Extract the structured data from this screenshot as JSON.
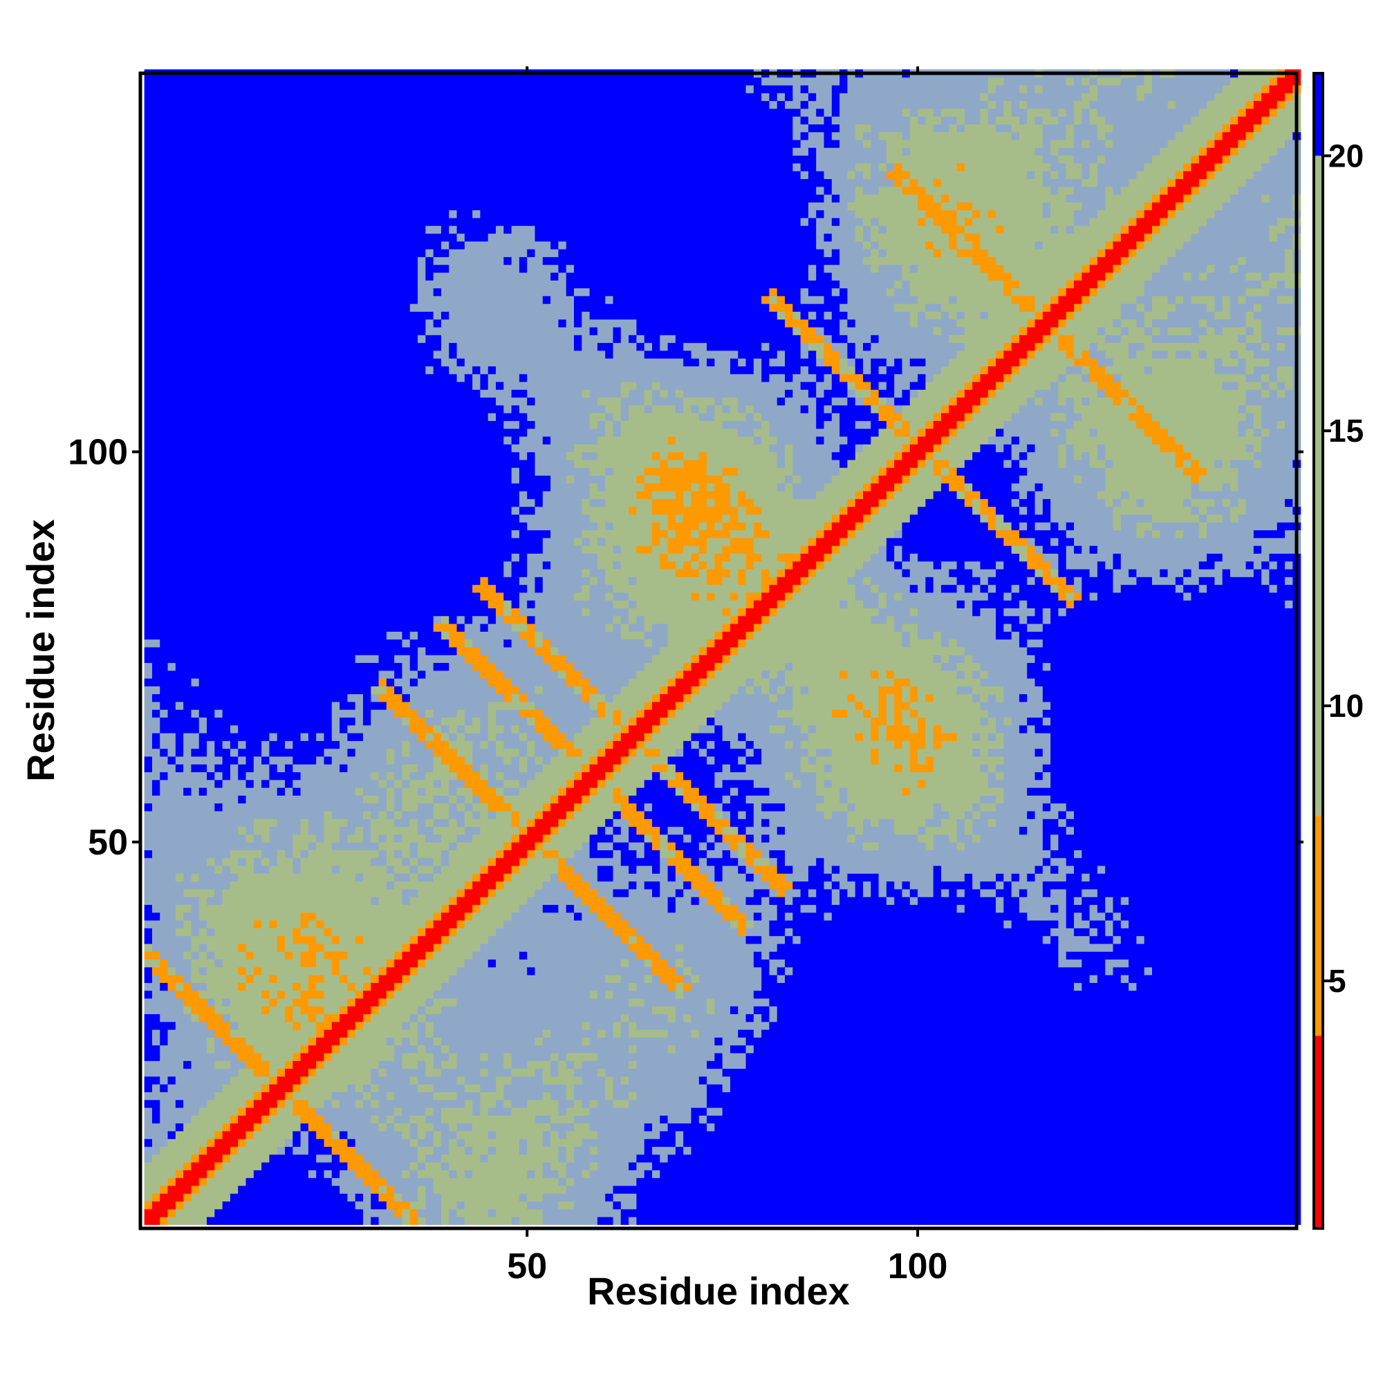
{
  "chart_data": {
    "type": "heatmap",
    "title": "",
    "xlabel": "Residue index",
    "ylabel": "Residue index",
    "x_range": [
      1,
      148
    ],
    "y_range": [
      1,
      148
    ],
    "x_ticks": [
      50,
      100
    ],
    "y_ticks": [
      50,
      100
    ],
    "x_tick_labels": [
      "50",
      "100"
    ],
    "y_tick_labels": [
      "50",
      "100"
    ],
    "colorbar": {
      "range": [
        0.5,
        21.5
      ],
      "ticks": [
        5,
        10,
        15,
        20
      ],
      "tick_labels": [
        "5",
        "10",
        "15",
        "20"
      ],
      "colors": [
        {
          "from": 0.5,
          "to": 4.0,
          "color": "#ff0000"
        },
        {
          "from": 4.0,
          "to": 8.0,
          "color": "#ff9900"
        },
        {
          "from": 8.0,
          "to": 20.0,
          "color": "#a6bd8a"
        },
        {
          "from": 20.0,
          "to": 21.5,
          "color": "#0000ff"
        }
      ]
    },
    "matrix_description_values": {
      "diagonal_distance": 3.8,
      "far_distance": 21,
      "symmetric": true
    },
    "colors": {
      "near": "#ff0000",
      "contact": "#ff9900",
      "mid": "#a6bd8a",
      "mid_alt": "#8fa8c8",
      "far": "#0000ff"
    }
  }
}
